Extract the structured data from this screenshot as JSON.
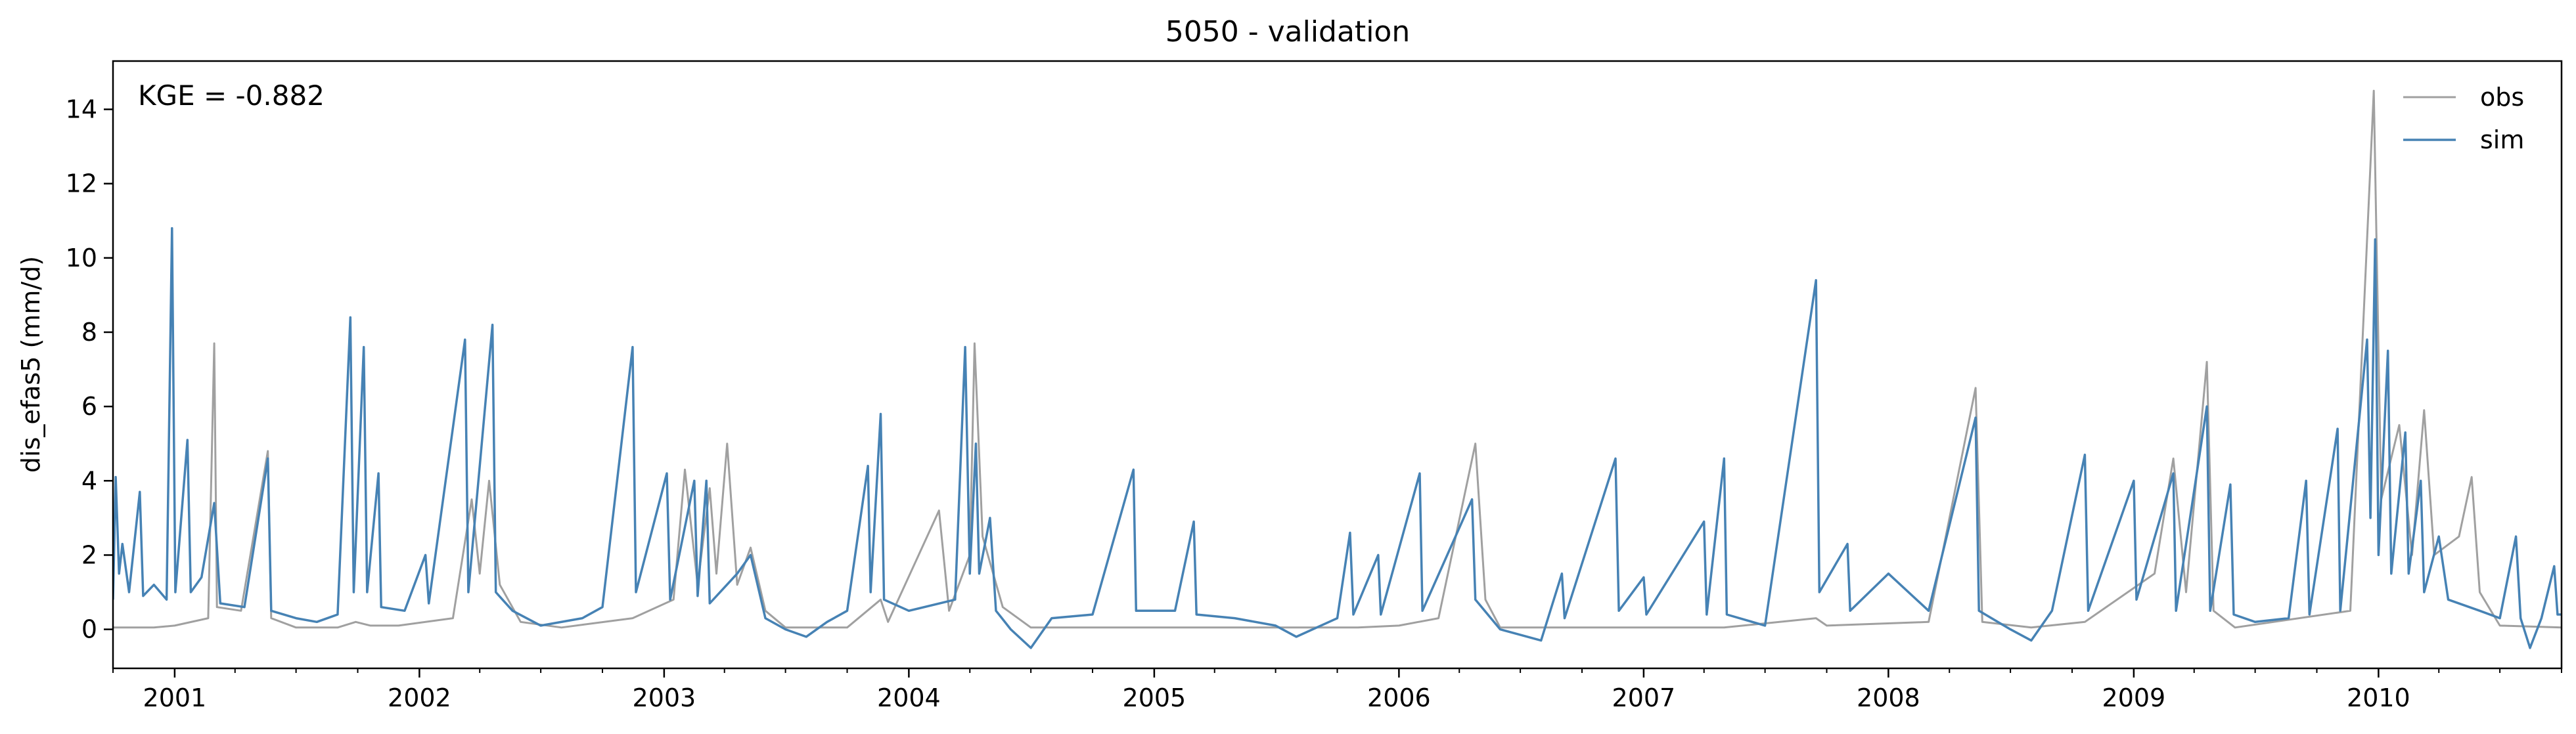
{
  "chart_data": {
    "type": "line",
    "title": "5050 - validation",
    "xlabel": "",
    "ylabel": "dis_efas5 (mm/d)",
    "annotation": "KGE = -0.882",
    "x_range": [
      "2000-10-01",
      "2010-10-01"
    ],
    "ylim": [
      -1.05,
      15.3
    ],
    "x_ticks": [
      "2001",
      "2002",
      "2003",
      "2004",
      "2005",
      "2006",
      "2007",
      "2008",
      "2009",
      "2010"
    ],
    "y_ticks": [
      0,
      2,
      4,
      6,
      8,
      10,
      12,
      14
    ],
    "grid": false,
    "legend_position": "top-right",
    "series": [
      {
        "name": "obs",
        "color": "#a0a0a0",
        "points": [
          [
            "2000-10-01",
            0.05
          ],
          [
            "2000-12-01",
            0.05
          ],
          [
            "2001-01-01",
            0.1
          ],
          [
            "2001-02-20",
            0.3
          ],
          [
            "2001-03-01",
            7.7
          ],
          [
            "2001-03-05",
            0.6
          ],
          [
            "2001-04-10",
            0.5
          ],
          [
            "2001-05-20",
            4.8
          ],
          [
            "2001-05-25",
            0.3
          ],
          [
            "2001-07-01",
            0.05
          ],
          [
            "2001-09-01",
            0.05
          ],
          [
            "2001-09-28",
            0.2
          ],
          [
            "2001-10-20",
            0.1
          ],
          [
            "2001-12-01",
            0.1
          ],
          [
            "2002-02-20",
            0.3
          ],
          [
            "2002-03-20",
            3.5
          ],
          [
            "2002-04-01",
            1.5
          ],
          [
            "2002-04-15",
            4.0
          ],
          [
            "2002-05-01",
            1.2
          ],
          [
            "2002-06-01",
            0.2
          ],
          [
            "2002-08-01",
            0.05
          ],
          [
            "2002-11-15",
            0.3
          ],
          [
            "2003-01-15",
            0.8
          ],
          [
            "2003-02-01",
            4.3
          ],
          [
            "2003-02-20",
            1.2
          ],
          [
            "2003-03-10",
            3.8
          ],
          [
            "2003-03-20",
            1.5
          ],
          [
            "2003-04-05",
            5.0
          ],
          [
            "2003-04-20",
            1.2
          ],
          [
            "2003-05-10",
            2.2
          ],
          [
            "2003-06-01",
            0.5
          ],
          [
            "2003-07-01",
            0.05
          ],
          [
            "2003-10-01",
            0.05
          ],
          [
            "2003-11-20",
            0.8
          ],
          [
            "2003-12-01",
            0.2
          ],
          [
            "2004-02-15",
            3.2
          ],
          [
            "2004-03-01",
            0.5
          ],
          [
            "2004-04-01",
            2.0
          ],
          [
            "2004-04-08",
            7.7
          ],
          [
            "2004-04-20",
            2.5
          ],
          [
            "2004-05-20",
            0.6
          ],
          [
            "2004-07-01",
            0.05
          ],
          [
            "2004-12-01",
            0.05
          ],
          [
            "2005-06-01",
            0.05
          ],
          [
            "2005-11-01",
            0.05
          ],
          [
            "2006-01-01",
            0.1
          ],
          [
            "2006-03-01",
            0.3
          ],
          [
            "2006-04-25",
            5.0
          ],
          [
            "2006-05-10",
            0.8
          ],
          [
            "2006-06-01",
            0.05
          ],
          [
            "2006-11-01",
            0.05
          ],
          [
            "2007-05-01",
            0.05
          ],
          [
            "2007-09-15",
            0.3
          ],
          [
            "2007-10-01",
            0.1
          ],
          [
            "2008-03-01",
            0.2
          ],
          [
            "2008-05-10",
            6.5
          ],
          [
            "2008-05-20",
            0.2
          ],
          [
            "2008-08-01",
            0.05
          ],
          [
            "2008-10-20",
            0.2
          ],
          [
            "2009-02-01",
            1.5
          ],
          [
            "2009-03-01",
            4.6
          ],
          [
            "2009-03-20",
            1.0
          ],
          [
            "2009-04-20",
            7.2
          ],
          [
            "2009-04-30",
            0.5
          ],
          [
            "2009-06-01",
            0.05
          ],
          [
            "2009-11-20",
            0.5
          ],
          [
            "2009-12-25",
            14.5
          ],
          [
            "2010-01-05",
            3.5
          ],
          [
            "2010-02-01",
            5.5
          ],
          [
            "2010-02-20",
            2.0
          ],
          [
            "2010-03-10",
            5.9
          ],
          [
            "2010-03-25",
            2.0
          ],
          [
            "2010-05-01",
            2.5
          ],
          [
            "2010-05-20",
            4.1
          ],
          [
            "2010-06-01",
            1.0
          ],
          [
            "2010-07-01",
            0.1
          ],
          [
            "2010-10-01",
            0.05
          ]
        ]
      },
      {
        "name": "sim",
        "color": "#4682b4",
        "points": [
          [
            "2000-10-01",
            0.8
          ],
          [
            "2000-10-05",
            4.1
          ],
          [
            "2000-10-10",
            1.5
          ],
          [
            "2000-10-15",
            2.3
          ],
          [
            "2000-10-25",
            1.0
          ],
          [
            "2000-11-10",
            3.7
          ],
          [
            "2000-11-15",
            0.9
          ],
          [
            "2000-12-01",
            1.2
          ],
          [
            "2000-12-20",
            0.8
          ],
          [
            "2000-12-28",
            10.8
          ],
          [
            "2001-01-02",
            1.0
          ],
          [
            "2001-01-20",
            5.1
          ],
          [
            "2001-01-25",
            1.0
          ],
          [
            "2001-02-10",
            1.4
          ],
          [
            "2001-03-01",
            3.4
          ],
          [
            "2001-03-10",
            0.7
          ],
          [
            "2001-04-15",
            0.6
          ],
          [
            "2001-05-20",
            4.6
          ],
          [
            "2001-05-25",
            0.5
          ],
          [
            "2001-07-01",
            0.3
          ],
          [
            "2001-08-01",
            0.2
          ],
          [
            "2001-09-01",
            0.4
          ],
          [
            "2001-09-20",
            8.4
          ],
          [
            "2001-09-25",
            1.0
          ],
          [
            "2001-10-10",
            7.6
          ],
          [
            "2001-10-15",
            1.0
          ],
          [
            "2001-11-01",
            4.2
          ],
          [
            "2001-11-05",
            0.6
          ],
          [
            "2001-12-10",
            0.5
          ],
          [
            "2002-01-10",
            2.0
          ],
          [
            "2002-01-15",
            0.7
          ],
          [
            "2002-03-10",
            7.8
          ],
          [
            "2002-03-15",
            1.0
          ],
          [
            "2002-04-20",
            8.2
          ],
          [
            "2002-04-25",
            1.0
          ],
          [
            "2002-05-20",
            0.5
          ],
          [
            "2002-07-01",
            0.1
          ],
          [
            "2002-09-01",
            0.3
          ],
          [
            "2002-10-01",
            0.6
          ],
          [
            "2002-11-15",
            7.6
          ],
          [
            "2002-11-20",
            1.0
          ],
          [
            "2003-01-05",
            4.2
          ],
          [
            "2003-01-10",
            0.8
          ],
          [
            "2003-02-15",
            4.0
          ],
          [
            "2003-02-20",
            0.9
          ],
          [
            "2003-03-05",
            4.0
          ],
          [
            "2003-03-10",
            0.7
          ],
          [
            "2003-04-20",
            1.5
          ],
          [
            "2003-05-10",
            2.0
          ],
          [
            "2003-06-01",
            0.3
          ],
          [
            "2003-07-01",
            0.0
          ],
          [
            "2003-08-01",
            -0.2
          ],
          [
            "2003-09-01",
            0.2
          ],
          [
            "2003-10-01",
            0.5
          ],
          [
            "2003-11-01",
            4.4
          ],
          [
            "2003-11-05",
            1.0
          ],
          [
            "2003-11-20",
            5.8
          ],
          [
            "2003-11-25",
            0.8
          ],
          [
            "2004-01-01",
            0.5
          ],
          [
            "2004-03-10",
            0.8
          ],
          [
            "2004-03-25",
            7.6
          ],
          [
            "2004-04-01",
            1.5
          ],
          [
            "2004-04-10",
            5.0
          ],
          [
            "2004-04-15",
            1.5
          ],
          [
            "2004-05-01",
            3.0
          ],
          [
            "2004-05-10",
            0.5
          ],
          [
            "2004-06-01",
            0.0
          ],
          [
            "2004-07-01",
            -0.5
          ],
          [
            "2004-08-01",
            0.3
          ],
          [
            "2004-10-01",
            0.4
          ],
          [
            "2004-12-01",
            4.3
          ],
          [
            "2004-12-05",
            0.5
          ],
          [
            "2005-02-01",
            0.5
          ],
          [
            "2005-03-01",
            2.9
          ],
          [
            "2005-03-05",
            0.4
          ],
          [
            "2005-05-01",
            0.3
          ],
          [
            "2005-07-01",
            0.1
          ],
          [
            "2005-08-01",
            -0.2
          ],
          [
            "2005-10-01",
            0.3
          ],
          [
            "2005-10-20",
            2.6
          ],
          [
            "2005-10-25",
            0.4
          ],
          [
            "2005-12-01",
            2.0
          ],
          [
            "2005-12-05",
            0.4
          ],
          [
            "2006-02-01",
            4.2
          ],
          [
            "2006-02-05",
            0.5
          ],
          [
            "2006-04-20",
            3.5
          ],
          [
            "2006-04-25",
            0.8
          ],
          [
            "2006-06-01",
            0.0
          ],
          [
            "2006-08-01",
            -0.3
          ],
          [
            "2006-09-01",
            1.5
          ],
          [
            "2006-09-05",
            0.3
          ],
          [
            "2006-11-20",
            4.6
          ],
          [
            "2006-11-25",
            0.5
          ],
          [
            "2007-01-01",
            1.4
          ],
          [
            "2007-01-05",
            0.4
          ],
          [
            "2007-04-01",
            2.9
          ],
          [
            "2007-04-05",
            0.4
          ],
          [
            "2007-05-01",
            4.6
          ],
          [
            "2007-05-05",
            0.4
          ],
          [
            "2007-07-01",
            0.1
          ],
          [
            "2007-09-15",
            9.4
          ],
          [
            "2007-09-20",
            1.0
          ],
          [
            "2007-11-01",
            2.3
          ],
          [
            "2007-11-05",
            0.5
          ],
          [
            "2008-01-01",
            1.5
          ],
          [
            "2008-03-01",
            0.5
          ],
          [
            "2008-05-10",
            5.7
          ],
          [
            "2008-05-15",
            0.5
          ],
          [
            "2008-07-01",
            0.0
          ],
          [
            "2008-08-01",
            -0.3
          ],
          [
            "2008-09-01",
            0.5
          ],
          [
            "2008-10-20",
            4.7
          ],
          [
            "2008-10-25",
            0.5
          ],
          [
            "2009-01-01",
            4.0
          ],
          [
            "2009-01-05",
            0.8
          ],
          [
            "2009-03-01",
            4.2
          ],
          [
            "2009-03-05",
            0.5
          ],
          [
            "2009-04-20",
            6.0
          ],
          [
            "2009-04-25",
            0.5
          ],
          [
            "2009-05-25",
            3.9
          ],
          [
            "2009-05-30",
            0.4
          ],
          [
            "2009-07-01",
            0.2
          ],
          [
            "2009-08-20",
            0.3
          ],
          [
            "2009-09-15",
            4.0
          ],
          [
            "2009-09-20",
            0.4
          ],
          [
            "2009-11-01",
            5.4
          ],
          [
            "2009-11-05",
            0.5
          ],
          [
            "2009-12-15",
            7.8
          ],
          [
            "2009-12-20",
            3.0
          ],
          [
            "2009-12-27",
            10.5
          ],
          [
            "2010-01-01",
            2.0
          ],
          [
            "2010-01-15",
            7.5
          ],
          [
            "2010-01-20",
            1.5
          ],
          [
            "2010-02-10",
            5.3
          ],
          [
            "2010-02-15",
            1.5
          ],
          [
            "2010-03-05",
            4.0
          ],
          [
            "2010-03-10",
            1.0
          ],
          [
            "2010-04-01",
            2.5
          ],
          [
            "2010-04-15",
            0.8
          ],
          [
            "2010-06-01",
            0.5
          ],
          [
            "2010-07-01",
            0.3
          ],
          [
            "2010-07-25",
            2.5
          ],
          [
            "2010-08-01",
            0.3
          ],
          [
            "2010-08-15",
            -0.5
          ],
          [
            "2010-09-01",
            0.3
          ],
          [
            "2010-09-20",
            1.7
          ],
          [
            "2010-09-25",
            0.4
          ],
          [
            "2010-10-01",
            0.4
          ]
        ]
      }
    ]
  }
}
